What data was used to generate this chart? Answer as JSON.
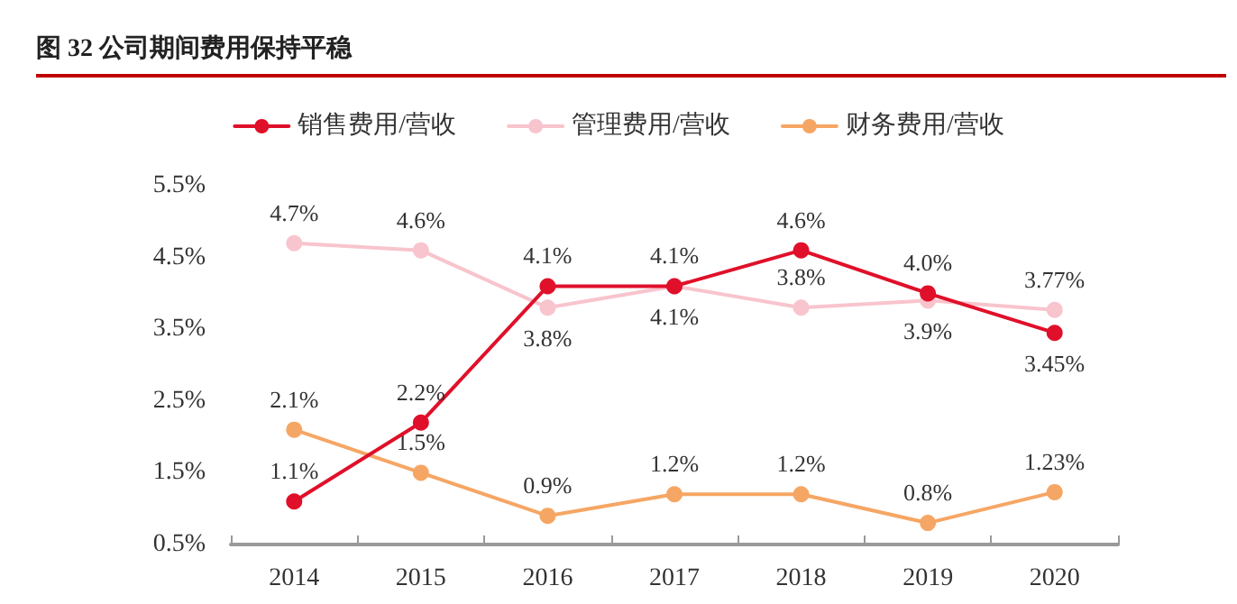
{
  "chart_data": {
    "type": "line",
    "title": "图 32 公司期间费用保持平稳",
    "categories": [
      "2014",
      "2015",
      "2016",
      "2017",
      "2018",
      "2019",
      "2020"
    ],
    "series": [
      {
        "name": "销售费用/营收",
        "color": "#e0102a",
        "values": [
          1.1,
          2.2,
          4.1,
          4.1,
          4.6,
          4.0,
          3.45
        ],
        "value_labels": [
          "1.1%",
          "2.2%",
          "4.1%",
          "4.1%",
          "4.6%",
          "4.0%",
          "3.45%"
        ]
      },
      {
        "name": "管理费用/营收",
        "color": "#f8c4cd",
        "values": [
          4.7,
          4.6,
          3.8,
          4.1,
          3.8,
          3.9,
          3.77
        ],
        "value_labels": [
          "4.7%",
          "4.6%",
          "3.8%",
          "4.1%",
          "3.8%",
          "3.9%",
          "3.77%"
        ]
      },
      {
        "name": "财务费用/营收",
        "color": "#f6a664",
        "values": [
          2.1,
          1.5,
          0.9,
          1.2,
          1.2,
          0.8,
          1.23
        ],
        "value_labels": [
          "2.1%",
          "1.5%",
          "0.9%",
          "1.2%",
          "1.2%",
          "0.8%",
          "1.23%"
        ]
      }
    ],
    "ylim": [
      0.5,
      5.5
    ],
    "yticks": [
      {
        "value": 0.5,
        "label": "0.5%"
      },
      {
        "value": 1.5,
        "label": "1.5%"
      },
      {
        "value": 2.5,
        "label": "2.5%"
      },
      {
        "value": 3.5,
        "label": "3.5%"
      },
      {
        "value": 4.5,
        "label": "4.5%"
      },
      {
        "value": 5.5,
        "label": "5.5%"
      }
    ],
    "grid": false,
    "legend": "top",
    "marker": "circle",
    "line_style": "solid"
  }
}
